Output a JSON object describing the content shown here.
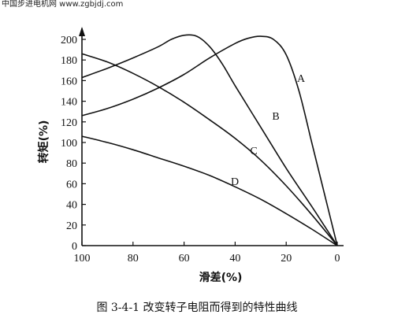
{
  "watermark": "中国步进电机网 www.zgbjdj.com",
  "caption": "图 3-4-1    改变转子电阻而得到的特性曲线",
  "chart_data": {
    "type": "line",
    "title": "",
    "xlabel": "滑差(%)",
    "ylabel": "转矩(%)",
    "xlim": [
      100,
      0
    ],
    "ylim": [
      0,
      210
    ],
    "x_ticks": [
      100,
      80,
      60,
      40,
      20,
      0
    ],
    "y_ticks": [
      0,
      20,
      40,
      60,
      80,
      100,
      120,
      140,
      160,
      180,
      200
    ],
    "series": [
      {
        "name": "A",
        "points": [
          [
            100,
            126
          ],
          [
            90,
            133
          ],
          [
            80,
            142
          ],
          [
            70,
            153
          ],
          [
            60,
            166
          ],
          [
            50,
            182
          ],
          [
            40,
            196
          ],
          [
            35,
            201
          ],
          [
            30,
            203
          ],
          [
            25,
            200
          ],
          [
            20,
            185
          ],
          [
            15,
            150
          ],
          [
            10,
            100
          ],
          [
            5,
            50
          ],
          [
            0,
            0
          ]
        ]
      },
      {
        "name": "B",
        "points": [
          [
            100,
            163
          ],
          [
            90,
            172
          ],
          [
            80,
            182
          ],
          [
            70,
            193
          ],
          [
            65,
            200
          ],
          [
            60,
            204
          ],
          [
            55,
            203
          ],
          [
            50,
            193
          ],
          [
            45,
            176
          ],
          [
            40,
            155
          ],
          [
            30,
            115
          ],
          [
            20,
            75
          ],
          [
            10,
            38
          ],
          [
            5,
            19
          ],
          [
            0,
            0
          ]
        ]
      },
      {
        "name": "C",
        "points": [
          [
            100,
            186
          ],
          [
            90,
            178
          ],
          [
            80,
            167
          ],
          [
            70,
            154
          ],
          [
            60,
            139
          ],
          [
            50,
            122
          ],
          [
            40,
            104
          ],
          [
            30,
            83
          ],
          [
            20,
            58
          ],
          [
            10,
            30
          ],
          [
            0,
            0
          ]
        ]
      },
      {
        "name": "D",
        "points": [
          [
            100,
            106
          ],
          [
            90,
            100
          ],
          [
            80,
            93
          ],
          [
            70,
            85
          ],
          [
            60,
            77
          ],
          [
            50,
            68
          ],
          [
            40,
            57
          ],
          [
            30,
            45
          ],
          [
            20,
            31
          ],
          [
            10,
            16
          ],
          [
            0,
            0
          ]
        ]
      }
    ],
    "annotations": [
      "A",
      "B",
      "C",
      "D"
    ],
    "grid": false
  }
}
